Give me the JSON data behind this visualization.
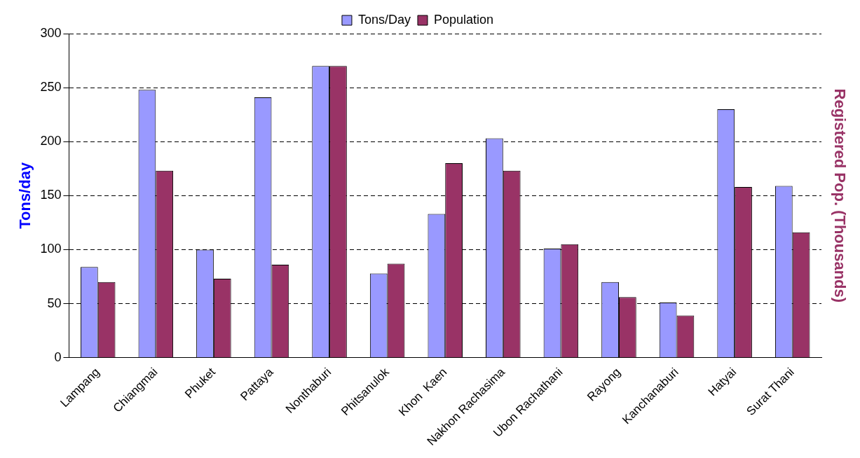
{
  "chart_data": {
    "type": "bar",
    "ylabel": "Tons/day",
    "y2label": "Registered Pop. (Thousands)",
    "categories": [
      "Lampang",
      "Chiangmai",
      "Phuket",
      "Pattaya",
      "Nonthaburi",
      "Phitsanulok",
      "Khon  Kaen",
      "Nakhon Rachasima",
      "Ubon Rachathani",
      "Rayong",
      "Kanchanaburi",
      "Hatyai",
      "Surat Thani"
    ],
    "series": [
      {
        "name": "Tons/Day",
        "color": "#9999ff",
        "values": [
          84,
          248,
          100,
          241,
          270,
          78,
          133,
          203,
          101,
          70,
          51,
          230,
          159
        ]
      },
      {
        "name": "Population",
        "color": "#993366",
        "values": [
          70,
          173,
          73,
          86,
          270,
          87,
          180,
          173,
          105,
          56,
          39,
          158,
          116
        ]
      }
    ],
    "ylim": [
      0,
      300
    ],
    "yticks": [
      0,
      50,
      100,
      150,
      200,
      250,
      300
    ],
    "grid": "y",
    "legend": "top"
  }
}
